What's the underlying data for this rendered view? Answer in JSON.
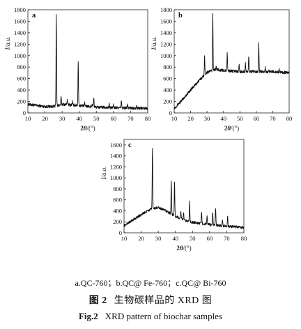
{
  "chart_data": [
    {
      "type": "line",
      "panel_label": "a",
      "xlabel_base": "2",
      "xlabel_var": "θ",
      "xlabel_unit": "/(°)",
      "ylabel": "I/a.u.",
      "xlim": [
        10,
        80
      ],
      "ylim": [
        0,
        1800
      ],
      "xticks": [
        10,
        20,
        30,
        40,
        50,
        60,
        70,
        80
      ],
      "yticks": [
        0,
        200,
        400,
        600,
        800,
        1000,
        1200,
        1400,
        1600,
        1800
      ],
      "baseline": [
        [
          10,
          150
        ],
        [
          20,
          110
        ],
        [
          26,
          115
        ],
        [
          30,
          150
        ],
        [
          40,
          130
        ],
        [
          50,
          100
        ],
        [
          60,
          90
        ],
        [
          70,
          85
        ],
        [
          80,
          80
        ]
      ],
      "peaks": [
        [
          26.6,
          1730
        ],
        [
          29.4,
          280
        ],
        [
          33.0,
          240
        ],
        [
          36.0,
          200
        ],
        [
          39.4,
          910
        ],
        [
          43.2,
          170
        ],
        [
          47.5,
          160
        ],
        [
          48.5,
          270
        ],
        [
          57.5,
          150
        ],
        [
          60.0,
          140
        ],
        [
          64.6,
          210
        ],
        [
          68.2,
          150
        ],
        [
          73.5,
          140
        ]
      ]
    },
    {
      "type": "line",
      "panel_label": "b",
      "xlabel_base": "2",
      "xlabel_var": "θ",
      "xlabel_unit": "/(°)",
      "ylabel": "I/a.u.",
      "xlim": [
        10,
        80
      ],
      "ylim": [
        0,
        1800
      ],
      "xticks": [
        10,
        20,
        30,
        40,
        50,
        60,
        70,
        80
      ],
      "yticks": [
        0,
        200,
        400,
        600,
        800,
        1000,
        1200,
        1400,
        1600,
        1800
      ],
      "baseline": [
        [
          10,
          80
        ],
        [
          15,
          230
        ],
        [
          20,
          400
        ],
        [
          25,
          560
        ],
        [
          30,
          710
        ],
        [
          35,
          760
        ],
        [
          40,
          740
        ],
        [
          50,
          720
        ],
        [
          60,
          720
        ],
        [
          70,
          720
        ],
        [
          80,
          700
        ]
      ],
      "peaks": [
        [
          28.5,
          1000
        ],
        [
          33.5,
          1720
        ],
        [
          35.6,
          800
        ],
        [
          42.3,
          1050
        ],
        [
          49.5,
          850
        ],
        [
          53.4,
          860
        ],
        [
          55.4,
          1000
        ],
        [
          61.5,
          1210
        ],
        [
          65.5,
          790
        ],
        [
          74.0,
          760
        ]
      ]
    },
    {
      "type": "line",
      "panel_label": "c",
      "xlabel_base": "2",
      "xlabel_var": "θ",
      "xlabel_unit": "/(°)",
      "ylabel": "I/a.u.",
      "xlim": [
        10,
        80
      ],
      "ylim": [
        0,
        1700
      ],
      "xticks": [
        10,
        20,
        30,
        40,
        50,
        60,
        70,
        80
      ],
      "yticks": [
        0,
        200,
        400,
        600,
        800,
        1000,
        1200,
        1400,
        1600
      ],
      "baseline": [
        [
          10,
          130
        ],
        [
          15,
          230
        ],
        [
          20,
          330
        ],
        [
          25,
          420
        ],
        [
          30,
          460
        ],
        [
          35,
          390
        ],
        [
          40,
          300
        ],
        [
          45,
          230
        ],
        [
          50,
          190
        ],
        [
          60,
          150
        ],
        [
          70,
          120
        ],
        [
          80,
          95
        ]
      ],
      "peaks": [
        [
          26.6,
          1560
        ],
        [
          37.6,
          950
        ],
        [
          39.5,
          940
        ],
        [
          43.2,
          400
        ],
        [
          44.8,
          380
        ],
        [
          48.3,
          580
        ],
        [
          55.3,
          380
        ],
        [
          58.5,
          300
        ],
        [
          61.8,
          380
        ],
        [
          63.5,
          460
        ],
        [
          67.5,
          230
        ],
        [
          70.5,
          300
        ]
      ]
    }
  ],
  "caption": {
    "samples": "a.QC-760；b.QC@ Fe-760；c.QC@ Bi-760",
    "cn_fig": "图 2",
    "cn_title": "生物碳样品的 XRD 图",
    "en_fig": "Fig.2",
    "en_title": "XRD pattern of biochar samples"
  }
}
